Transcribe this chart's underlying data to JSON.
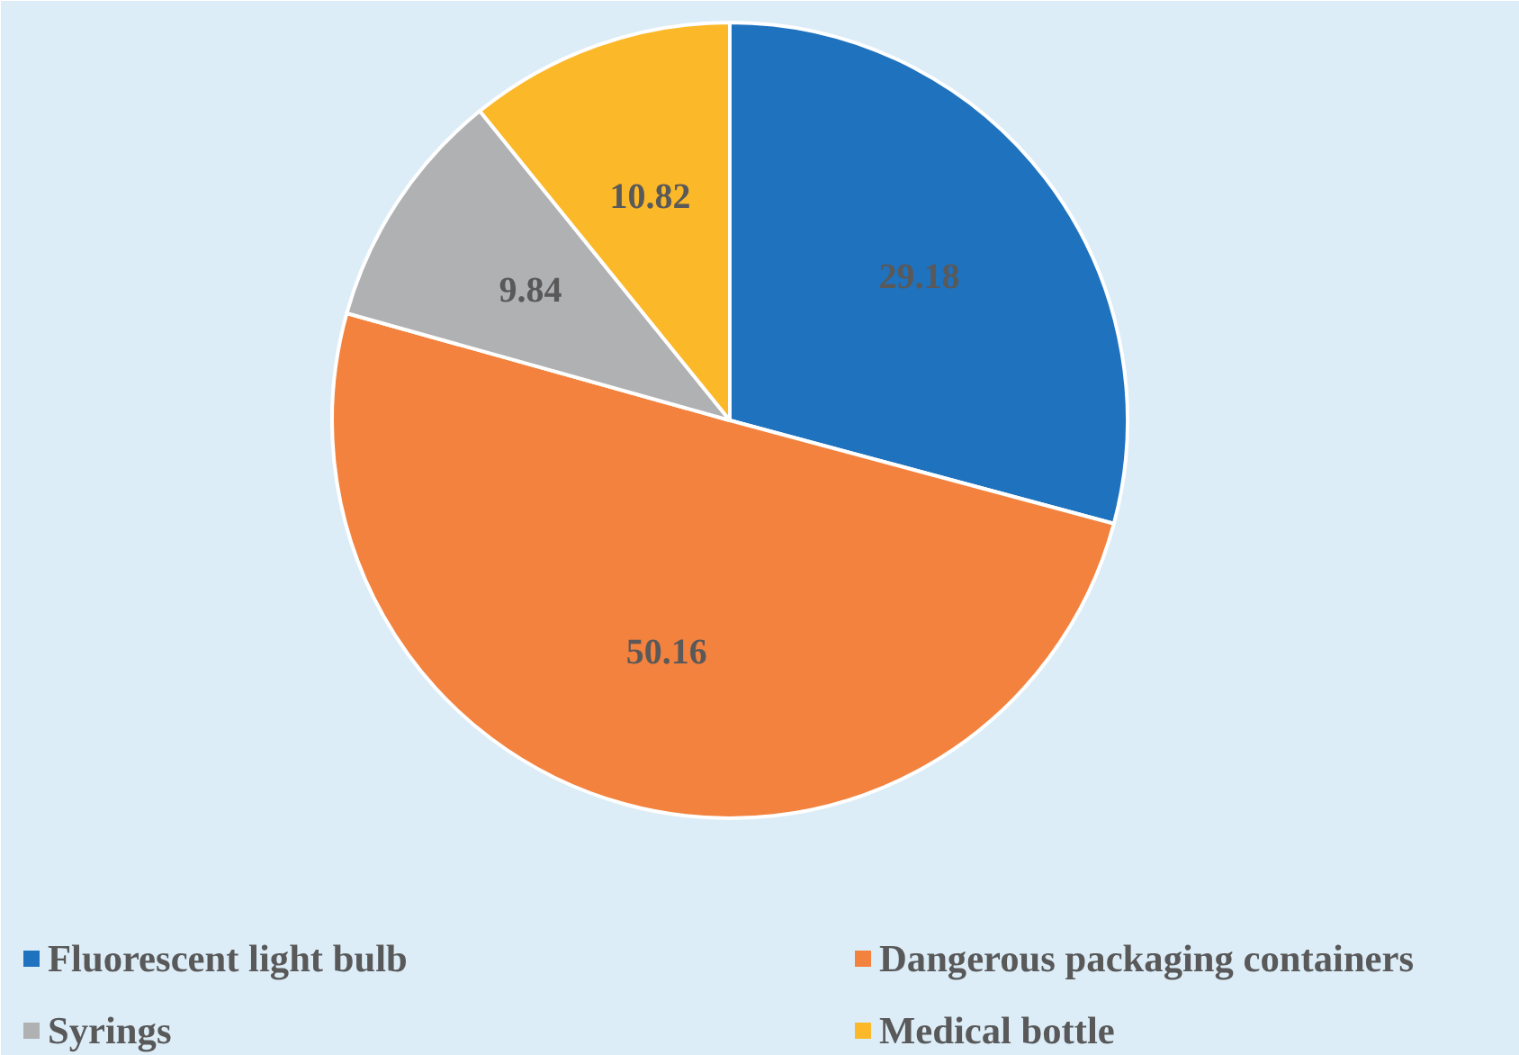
{
  "chart_data": {
    "type": "pie",
    "categories": [
      "Fluorescent light bulb",
      "Dangerous packaging containers",
      "Syrings",
      "Medical bottle"
    ],
    "values": [
      29.18,
      50.16,
      9.84,
      10.82
    ],
    "colors": [
      "#1f72be",
      "#f3823e",
      "#b0b1b3",
      "#fbb829"
    ],
    "data_labels": true,
    "legend": "bottom"
  }
}
